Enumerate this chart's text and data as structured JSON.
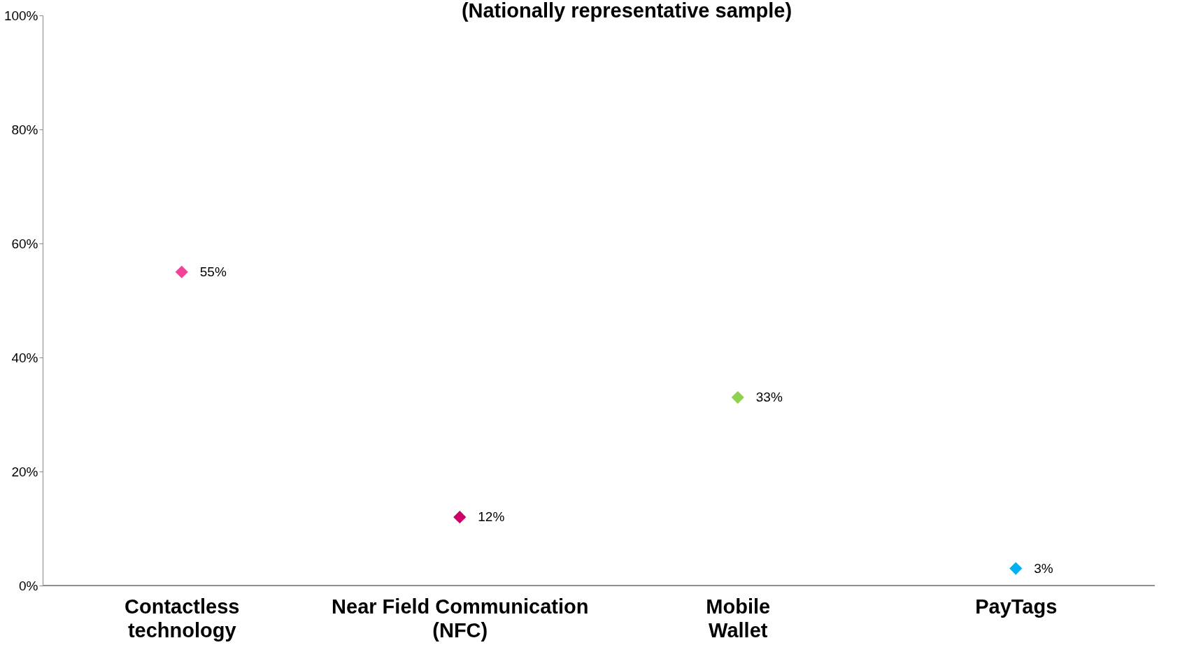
{
  "chart_data": {
    "type": "scatter",
    "title": "(Nationally representative sample)",
    "categories": [
      "Contactless technology",
      "Near Field Communication (NFC)",
      "Mobile Wallet",
      "PayTags"
    ],
    "values": [
      55,
      12,
      33,
      3
    ],
    "colors": [
      "#f5409a",
      "#cc0066",
      "#92d050",
      "#00b0f0"
    ],
    "value_labels": [
      "55%",
      "12%",
      "33%",
      "3%"
    ],
    "ylim": [
      0,
      100
    ],
    "yticks": [
      {
        "value": 0,
        "label": "0%"
      },
      {
        "value": 20,
        "label": "20%"
      },
      {
        "value": 40,
        "label": "40%"
      },
      {
        "value": 60,
        "label": "60%"
      },
      {
        "value": 80,
        "label": "80%"
      },
      {
        "value": 100,
        "label": "100%"
      }
    ],
    "marker": "diamond",
    "grid": false
  }
}
